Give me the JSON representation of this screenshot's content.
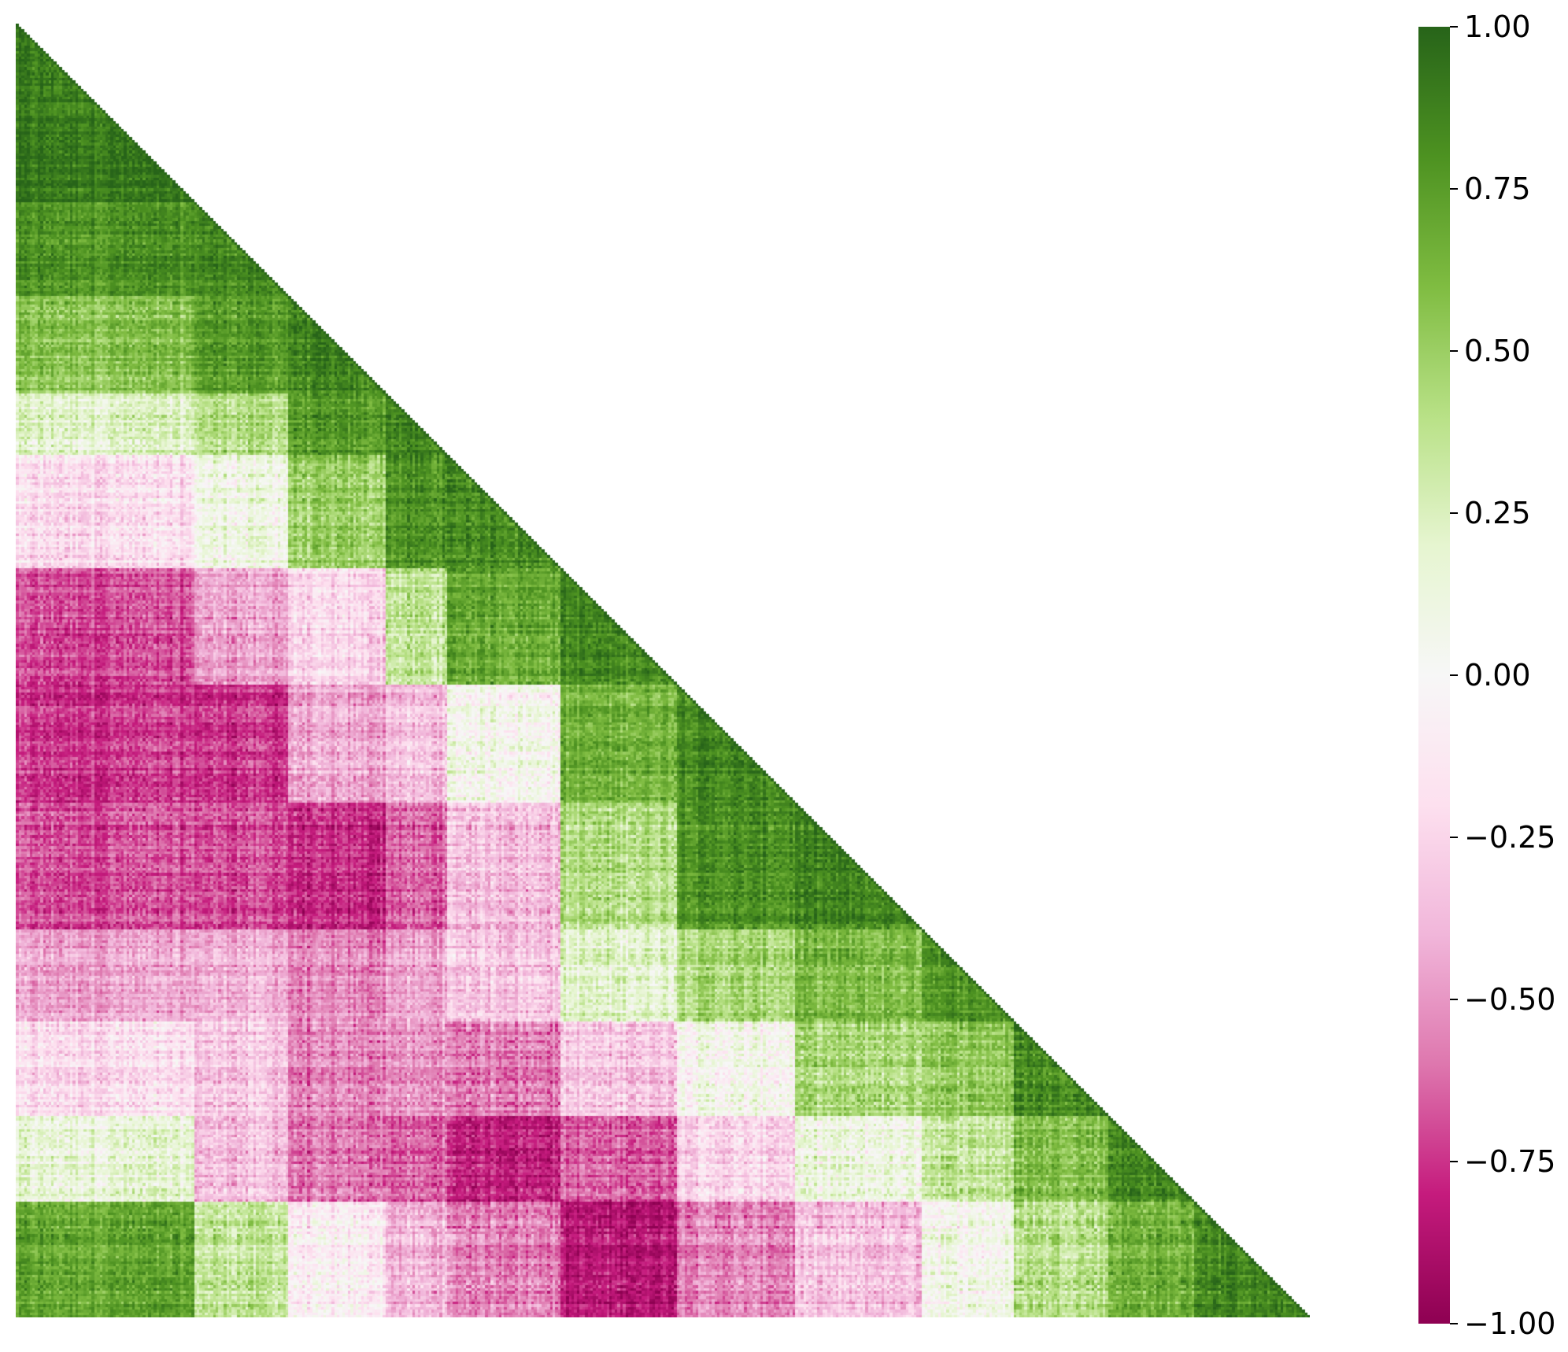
{
  "chart_data": {
    "type": "heatmap",
    "title": "",
    "xlabel": "",
    "ylabel": "",
    "mask": "upper-triangle",
    "matrix_size": 480,
    "value_range": [
      -1.0,
      1.0
    ],
    "diagonal_value": 1.0,
    "block_boundaries": [
      0,
      66,
      101,
      137,
      160,
      202,
      245,
      289,
      336,
      370,
      405,
      437,
      480
    ],
    "block_correlations": [
      [
        0.9,
        0.8,
        0.55,
        0.2,
        -0.2,
        -0.7,
        -0.75,
        -0.7,
        -0.45,
        -0.2,
        0.15,
        0.7
      ],
      [
        0.8,
        0.85,
        0.75,
        0.4,
        0.1,
        -0.45,
        -0.75,
        -0.7,
        -0.4,
        -0.3,
        -0.35,
        0.35
      ],
      [
        0.55,
        0.75,
        0.85,
        0.75,
        0.5,
        -0.25,
        -0.45,
        -0.8,
        -0.55,
        -0.55,
        -0.6,
        -0.1
      ],
      [
        0.2,
        0.4,
        0.75,
        0.85,
        0.8,
        0.35,
        -0.35,
        -0.65,
        -0.45,
        -0.5,
        -0.65,
        -0.4
      ],
      [
        -0.2,
        0.1,
        0.5,
        0.8,
        0.85,
        0.7,
        0.05,
        -0.35,
        -0.3,
        -0.55,
        -0.8,
        -0.55
      ],
      [
        -0.7,
        -0.45,
        -0.25,
        0.35,
        0.7,
        0.85,
        0.65,
        0.4,
        0.2,
        -0.3,
        -0.65,
        -0.85
      ],
      [
        -0.75,
        -0.75,
        -0.45,
        -0.35,
        0.05,
        0.65,
        0.85,
        0.8,
        0.45,
        0.05,
        -0.25,
        -0.55
      ],
      [
        -0.7,
        -0.7,
        -0.8,
        -0.65,
        -0.35,
        0.4,
        0.8,
        0.85,
        0.6,
        0.45,
        0.1,
        -0.35
      ],
      [
        -0.45,
        -0.4,
        -0.55,
        -0.45,
        -0.3,
        0.2,
        0.45,
        0.6,
        0.8,
        0.55,
        0.35,
        0.05
      ],
      [
        -0.2,
        -0.3,
        -0.55,
        -0.5,
        -0.55,
        -0.3,
        0.05,
        0.45,
        0.55,
        0.85,
        0.6,
        0.4
      ],
      [
        0.15,
        -0.35,
        -0.6,
        -0.65,
        -0.8,
        -0.65,
        -0.25,
        0.1,
        0.35,
        0.6,
        0.85,
        0.65
      ],
      [
        0.7,
        0.35,
        -0.1,
        -0.4,
        -0.55,
        -0.85,
        -0.55,
        -0.35,
        0.05,
        0.4,
        0.65,
        0.85
      ]
    ],
    "colormap": "PiYG",
    "colormap_stops": [
      "#8e0152",
      "#c51b7d",
      "#de77ae",
      "#f1b6da",
      "#fde0ef",
      "#f7f7f7",
      "#e6f5d0",
      "#b8e186",
      "#7fbc41",
      "#4d9221",
      "#276419"
    ],
    "colorbar": {
      "ticks": [
        "1.00",
        "0.75",
        "0.50",
        "0.25",
        "0.00",
        "−0.25",
        "−0.50",
        "−0.75",
        "−1.00"
      ],
      "tick_values": [
        1.0,
        0.75,
        0.5,
        0.25,
        0.0,
        -0.25,
        -0.5,
        -0.75,
        -1.0
      ]
    },
    "grid": false,
    "legend": "colorbar-right"
  }
}
